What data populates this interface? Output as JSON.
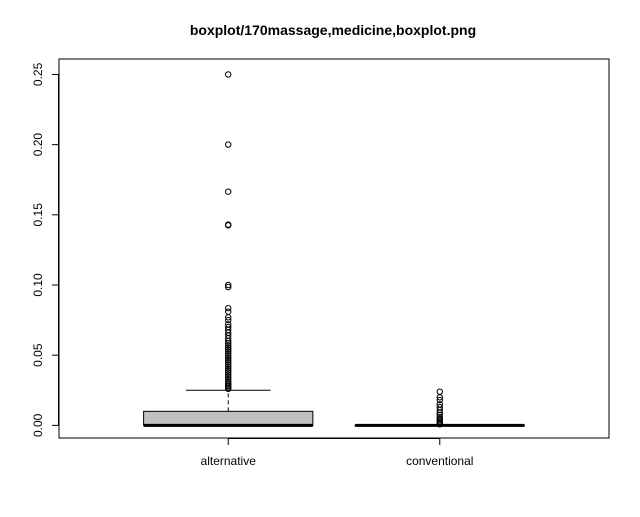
{
  "chart_data": {
    "type": "boxplot",
    "title": "boxplot/170massage,medicine,boxplot.png",
    "xlabel": "",
    "ylabel": "",
    "ylim": [
      -0.009,
      0.261
    ],
    "yticks": [
      0.0,
      0.05,
      0.1,
      0.15,
      0.2,
      0.25
    ],
    "ytick_labels": [
      "0.00",
      "0.05",
      "0.10",
      "0.15",
      "0.20",
      "0.25"
    ],
    "grid": false,
    "legend": "none",
    "box_color": "#c0c0c0",
    "categories": [
      "alternative",
      "conventional"
    ],
    "boxes": [
      {
        "name": "alternative",
        "whisker_low": 0.0,
        "q1": 0.0,
        "median": 0.0,
        "q3": 0.01,
        "whisker_high": 0.025,
        "outliers": [
          0.25,
          0.2,
          0.1665,
          0.143,
          0.1425,
          0.1,
          0.0985,
          0.0835,
          0.081,
          0.077,
          0.075,
          0.072,
          0.07,
          0.068,
          0.066,
          0.064,
          0.062,
          0.06,
          0.0585,
          0.057,
          0.0555,
          0.054,
          0.0525,
          0.051,
          0.0495,
          0.048,
          0.0465,
          0.045,
          0.0435,
          0.042,
          0.0405,
          0.039,
          0.0375,
          0.036,
          0.0345,
          0.033,
          0.0315,
          0.03,
          0.029,
          0.028,
          0.027,
          0.026
        ]
      },
      {
        "name": "conventional",
        "whisker_low": 0.0,
        "q1": 0.0,
        "median": 0.0,
        "q3": 0.0,
        "whisker_high": 0.0,
        "outliers": [
          0.024,
          0.02,
          0.018,
          0.015,
          0.013,
          0.011,
          0.009,
          0.0075,
          0.006,
          0.0045,
          0.0035,
          0.0025,
          0.0015,
          0.0008
        ]
      }
    ]
  }
}
